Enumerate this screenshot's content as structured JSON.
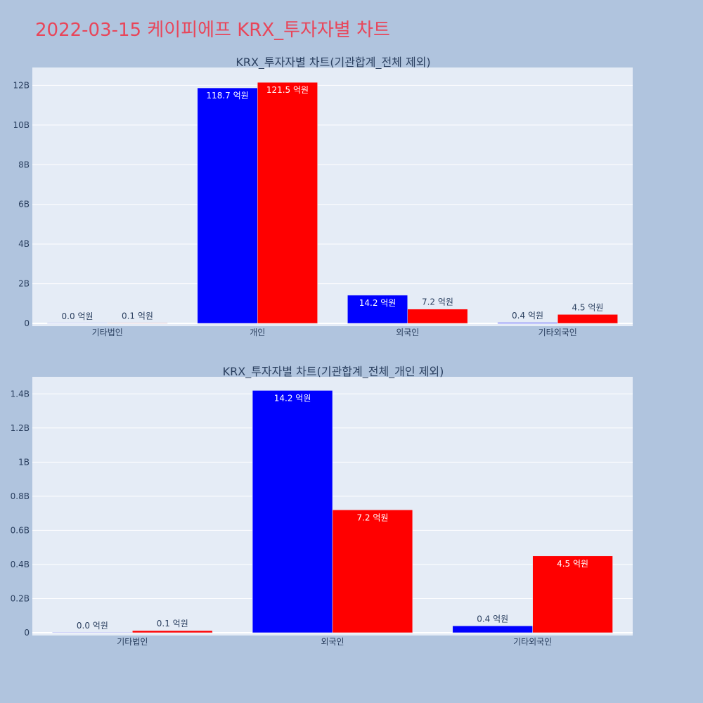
{
  "page": {
    "title": "2022-03-15 케이피에프 KRX_투자자별 차트"
  },
  "colors": {
    "background": "#b0c4de",
    "plot_bg": "#e5ecf6",
    "title": "#e8465a",
    "text": "#2a3f5f",
    "buy": "#0000ff",
    "sell": "#ff0000"
  },
  "chart_data": [
    {
      "type": "bar",
      "title": "KRX_투자자별 차트(기관합계_전체 제외)",
      "categories": [
        "기타법인",
        "개인",
        "외국인",
        "기타외국인"
      ],
      "ylim": [
        0,
        12900000000
      ],
      "yticks": [
        0,
        2000000000,
        4000000000,
        6000000000,
        8000000000,
        10000000000,
        12000000000
      ],
      "ytick_labels": [
        "0",
        "2B",
        "4B",
        "6B",
        "8B",
        "10B",
        "12B"
      ],
      "grid": true,
      "series": [
        {
          "color": "#0000ff",
          "values": [
            1000000,
            11870000000,
            1420000000,
            40000000
          ],
          "labels": [
            "0.0 억원",
            "118.7 억원",
            "14.2 억원",
            "0.4 억원"
          ]
        },
        {
          "color": "#ff0000",
          "values": [
            12000000,
            12150000000,
            720000000,
            450000000
          ],
          "labels": [
            "0.1 억원",
            "121.5 억원",
            "7.2 억원",
            "4.5 억원"
          ]
        }
      ]
    },
    {
      "type": "bar",
      "title": "KRX_투자자별 차트(기관합계_전체_개인 제외)",
      "categories": [
        "기타법인",
        "외국인",
        "기타외국인"
      ],
      "ylim": [
        0,
        1500000000
      ],
      "yticks": [
        0,
        200000000,
        400000000,
        600000000,
        800000000,
        1000000000,
        1200000000,
        1400000000
      ],
      "ytick_labels": [
        "0",
        "0.2B",
        "0.4B",
        "0.6B",
        "0.8B",
        "1B",
        "1.2B",
        "1.4B"
      ],
      "grid": true,
      "series": [
        {
          "color": "#0000ff",
          "values": [
            1000000,
            1420000000,
            40000000
          ],
          "labels": [
            "0.0 억원",
            "14.2 억원",
            "0.4 억원"
          ]
        },
        {
          "color": "#ff0000",
          "values": [
            12000000,
            720000000,
            450000000
          ],
          "labels": [
            "0.1 억원",
            "7.2 억원",
            "4.5 억원"
          ]
        }
      ]
    }
  ]
}
